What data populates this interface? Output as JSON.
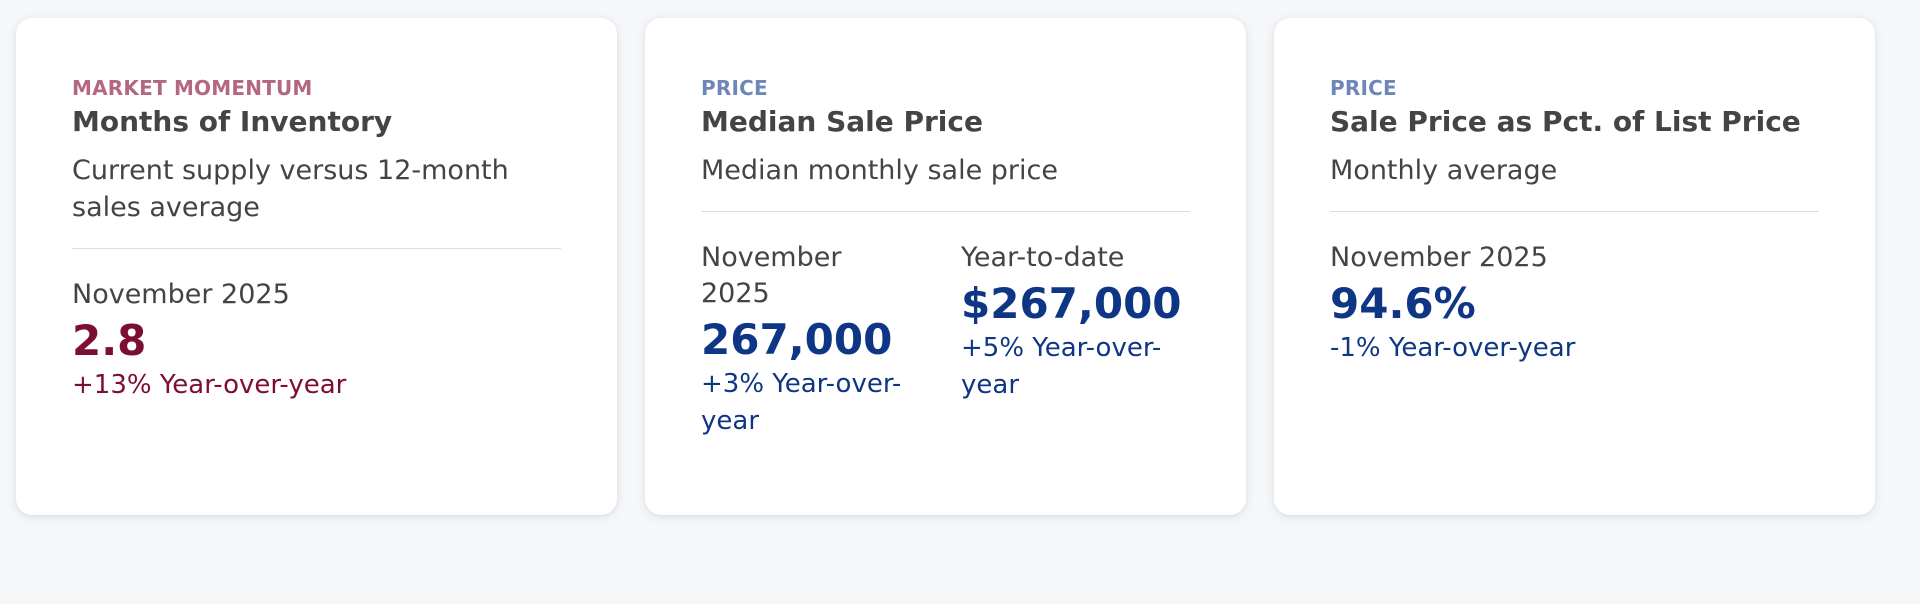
{
  "cards": [
    {
      "category": "Market Momentum",
      "title": "Months of Inventory",
      "description": "Current supply versus 12-month sales average",
      "stats": [
        {
          "label": "November 2025",
          "value": "2.8",
          "change": "+13% Year-over-year"
        }
      ]
    },
    {
      "category": "Price",
      "title": "Median Sale Price",
      "description": "Median monthly sale price",
      "stats": [
        {
          "label": "November 2025",
          "value": "267,000",
          "change": "+3% Year-over-year"
        },
        {
          "label": "Year-to-date",
          "value": "$267,000",
          "change": "+5% Year-over-year"
        }
      ]
    },
    {
      "category": "Price",
      "title": "Sale Price as Pct. of List Price",
      "description": "Monthly average",
      "stats": [
        {
          "label": "November 2025",
          "value": "94.6%",
          "change": "-1% Year-over-year"
        }
      ]
    }
  ],
  "colors": {
    "momentum_accent": "#7d0e33",
    "momentum_eyebrow": "#b4687f",
    "price_accent": "#0f3685",
    "price_eyebrow": "#6f86b8"
  }
}
